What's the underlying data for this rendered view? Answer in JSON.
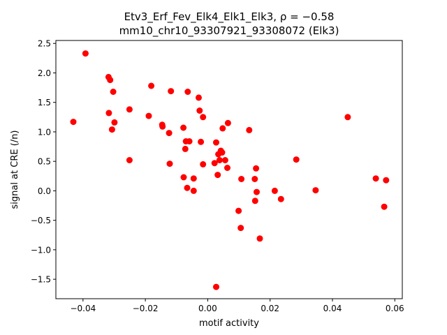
{
  "chart_data": {
    "type": "scatter",
    "title_line1": "Etv3_Erf_Fev_Elk4_Elk1_Elk3, ρ = −0.58",
    "title_line2": "mm10_chr10_93307921_93308072 (Elk3)",
    "xlabel": "motif activity",
    "ylabel": "signal at CRE (/n)",
    "xlim": [
      -0.0487,
      0.0624
    ],
    "ylim": [
      -1.83,
      2.55
    ],
    "xticks": [
      -0.04,
      -0.02,
      0.0,
      0.02,
      0.04,
      0.06
    ],
    "xtick_labels": [
      "−0.04",
      "−0.02",
      "0.00",
      "0.02",
      "0.04",
      "0.06"
    ],
    "yticks": [
      -1.5,
      -1.0,
      -0.5,
      0.0,
      0.5,
      1.0,
      1.5,
      2.0,
      2.5
    ],
    "ytick_labels": [
      "−1.5",
      "−1.0",
      "−0.5",
      "0.0",
      "0.5",
      "1.0",
      "1.5",
      "2.0",
      "2.5"
    ],
    "grid": false,
    "legend": "none",
    "marker_color": "#ff0000",
    "points": [
      {
        "x": -0.0431,
        "y": 1.17
      },
      {
        "x": -0.0392,
        "y": 2.33
      },
      {
        "x": -0.0318,
        "y": 1.93
      },
      {
        "x": -0.0313,
        "y": 1.88
      },
      {
        "x": -0.0303,
        "y": 1.68
      },
      {
        "x": -0.0317,
        "y": 1.32
      },
      {
        "x": -0.0299,
        "y": 1.16
      },
      {
        "x": -0.0307,
        "y": 1.04
      },
      {
        "x": -0.0251,
        "y": 1.38
      },
      {
        "x": -0.0251,
        "y": 0.52
      },
      {
        "x": -0.0181,
        "y": 1.78
      },
      {
        "x": -0.0189,
        "y": 1.27
      },
      {
        "x": -0.0146,
        "y": 1.12
      },
      {
        "x": -0.0145,
        "y": 1.09
      },
      {
        "x": -0.0118,
        "y": 1.69
      },
      {
        "x": -0.0124,
        "y": 0.98
      },
      {
        "x": -0.0122,
        "y": 0.46
      },
      {
        "x": -0.0064,
        "y": 1.68
      },
      {
        "x": -0.0078,
        "y": 1.07
      },
      {
        "x": -0.007,
        "y": 0.84
      },
      {
        "x": -0.0072,
        "y": 0.71
      },
      {
        "x": -0.0059,
        "y": 0.84
      },
      {
        "x": -0.0077,
        "y": 0.23
      },
      {
        "x": -0.0066,
        "y": 0.05
      },
      {
        "x": -0.0045,
        "y": 0.21
      },
      {
        "x": -0.0045,
        "y": 0.0
      },
      {
        "x": -0.0029,
        "y": 1.58
      },
      {
        "x": -0.0026,
        "y": 1.36
      },
      {
        "x": -0.0015,
        "y": 1.25
      },
      {
        "x": -0.0022,
        "y": 0.83
      },
      {
        "x": -0.0015,
        "y": 0.45
      },
      {
        "x": 0.0048,
        "y": 1.06
      },
      {
        "x": 0.0065,
        "y": 1.15
      },
      {
        "x": 0.0027,
        "y": 0.82
      },
      {
        "x": 0.0042,
        "y": 0.68
      },
      {
        "x": 0.0034,
        "y": 0.62
      },
      {
        "x": 0.0046,
        "y": 0.65
      },
      {
        "x": 0.0038,
        "y": 0.52
      },
      {
        "x": 0.0056,
        "y": 0.52
      },
      {
        "x": 0.0022,
        "y": 0.47
      },
      {
        "x": 0.0063,
        "y": 0.39
      },
      {
        "x": 0.0032,
        "y": 0.27
      },
      {
        "x": 0.0027,
        "y": -1.63
      },
      {
        "x": 0.0133,
        "y": 1.03
      },
      {
        "x": 0.0155,
        "y": 0.38
      },
      {
        "x": 0.0108,
        "y": 0.2
      },
      {
        "x": 0.0151,
        "y": 0.2
      },
      {
        "x": 0.0157,
        "y": -0.02
      },
      {
        "x": 0.0152,
        "y": -0.17
      },
      {
        "x": 0.0099,
        "y": -0.34
      },
      {
        "x": 0.0106,
        "y": -0.63
      },
      {
        "x": 0.0167,
        "y": -0.81
      },
      {
        "x": 0.0215,
        "y": 0.0
      },
      {
        "x": 0.0235,
        "y": -0.14
      },
      {
        "x": 0.0284,
        "y": 0.53
      },
      {
        "x": 0.0346,
        "y": 0.01
      },
      {
        "x": 0.0449,
        "y": 1.25
      },
      {
        "x": 0.0539,
        "y": 0.21
      },
      {
        "x": 0.0572,
        "y": 0.18
      },
      {
        "x": 0.0566,
        "y": -0.27
      }
    ]
  }
}
